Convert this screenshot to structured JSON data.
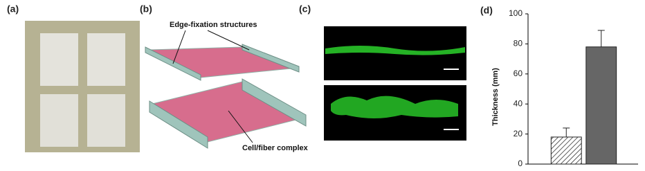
{
  "panels": {
    "a": "(a)",
    "b": "(b)",
    "c": "(c)"
  },
  "diagram": {
    "top_label": "Edge-fixation structures",
    "bottom_label": "Cell/fiber complex"
  },
  "chart_data": {
    "type": "bar",
    "panel_label": "(d)",
    "y_label": "Thickness (mm)",
    "categories": [
      null,
      null
    ],
    "values": [
      18,
      78
    ],
    "errors": [
      6,
      11
    ],
    "colors": [
      "#ffffff",
      "#666666"
    ],
    "patterns": [
      "hatch",
      "solid"
    ],
    "ylim": [
      0,
      100
    ],
    "yticks": [
      0,
      20,
      40,
      60,
      80,
      100
    ],
    "grid": false
  }
}
